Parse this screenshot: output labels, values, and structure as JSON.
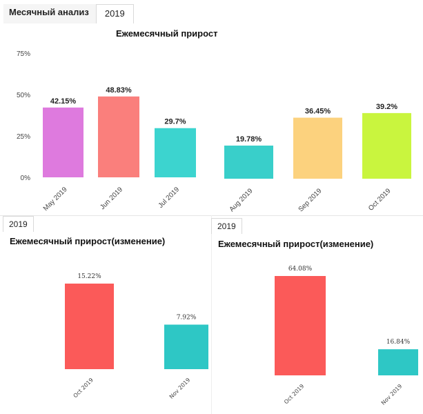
{
  "header": {
    "title": "Месячный анализ",
    "tab": "2019"
  },
  "sub_tabs": {
    "left": "2019",
    "right": "2019"
  },
  "chart_data": [
    {
      "type": "bar",
      "title": "Ежемесячный прирост",
      "categories": [
        "May 2019",
        "Jun 2019",
        "Jul 2019",
        "Aug 2019",
        "Sep 2019",
        "Oct 2019"
      ],
      "values": [
        42.15,
        48.83,
        29.7,
        19.78,
        36.45,
        39.2
      ],
      "labels": [
        "42.15%",
        "48.83%",
        "29.7%",
        "19.78%",
        "36.45%",
        "39.2%"
      ],
      "colors": [
        "#de7ade",
        "#fa7f7c",
        "#3cd4cf",
        "#39cfca",
        "#fcd27e",
        "#c9f53e"
      ],
      "yticks": [
        "0%",
        "25%",
        "50%",
        "75%"
      ],
      "ylim": [
        0,
        75
      ],
      "grid": false
    },
    {
      "type": "bar",
      "title": "Ежемесячный прирост(изменение)",
      "categories": [
        "Oct 2019",
        "Nov 2019"
      ],
      "values": [
        15.22,
        7.92
      ],
      "labels": [
        "15.22%",
        "7.92%"
      ],
      "colors": [
        "#fb5a59",
        "#2ec7c5"
      ]
    },
    {
      "type": "bar",
      "title": "Ежемесячный прирост(изменение)",
      "categories": [
        "Oct 2019",
        "Nov 2019"
      ],
      "values": [
        64.08,
        16.84
      ],
      "labels": [
        "64.08%",
        "16.84%"
      ],
      "colors": [
        "#fb5a59",
        "#2ec7c5"
      ]
    }
  ]
}
